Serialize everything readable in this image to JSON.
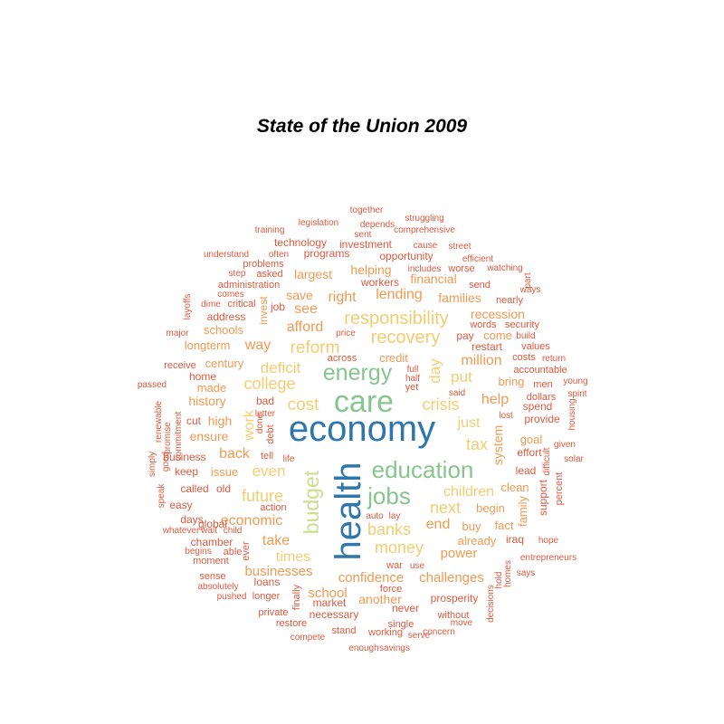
{
  "title": "State of the Union 2009",
  "palette": {
    "blue": "#2f76ad",
    "green": "#86c68e",
    "lightgreen": "#c7e08a",
    "yellow": "#f5cd70",
    "orange": "#f29a51",
    "red": "#e0593f"
  },
  "words": [
    {
      "text": "economy",
      "color": "blue",
      "size": 40
    },
    {
      "text": "health",
      "color": "blue",
      "size": 40
    },
    {
      "text": "care",
      "color": "green",
      "size": 34
    },
    {
      "text": "education",
      "color": "green",
      "size": 26
    },
    {
      "text": "energy",
      "color": "green",
      "size": 25
    },
    {
      "text": "jobs",
      "color": "green",
      "size": 26
    },
    {
      "text": "budget",
      "color": "lightgreen",
      "size": 23
    },
    {
      "text": "responsibility",
      "color": "yellow",
      "size": 20
    },
    {
      "text": "recovery",
      "color": "yellow",
      "size": 20
    },
    {
      "text": "reform",
      "color": "yellow",
      "size": 19
    },
    {
      "text": "deficit",
      "color": "yellow",
      "size": 17
    },
    {
      "text": "college",
      "color": "yellow",
      "size": 18
    },
    {
      "text": "cost",
      "color": "yellow",
      "size": 19
    },
    {
      "text": "crisis",
      "color": "yellow",
      "size": 18
    },
    {
      "text": "future",
      "color": "yellow",
      "size": 18
    },
    {
      "text": "even",
      "color": "yellow",
      "size": 17
    },
    {
      "text": "money",
      "color": "yellow",
      "size": 18
    },
    {
      "text": "banks",
      "color": "yellow",
      "size": 18
    },
    {
      "text": "next",
      "color": "yellow",
      "size": 18
    },
    {
      "text": "children",
      "color": "yellow",
      "size": 16
    },
    {
      "text": "put",
      "color": "yellow",
      "size": 17
    },
    {
      "text": "just",
      "color": "yellow",
      "size": 16
    },
    {
      "text": "tax",
      "color": "yellow",
      "size": 18
    },
    {
      "text": "day",
      "color": "yellow",
      "size": 17
    },
    {
      "text": "work",
      "color": "yellow",
      "size": 16
    },
    {
      "text": "times",
      "color": "yellow",
      "size": 16
    },
    {
      "text": "take",
      "color": "orange",
      "size": 16
    },
    {
      "text": "afford",
      "color": "orange",
      "size": 16
    },
    {
      "text": "see",
      "color": "orange",
      "size": 16
    },
    {
      "text": "right",
      "color": "orange",
      "size": 16
    },
    {
      "text": "lending",
      "color": "orange",
      "size": 16
    },
    {
      "text": "way",
      "color": "orange",
      "size": 16
    },
    {
      "text": "help",
      "color": "orange",
      "size": 16
    },
    {
      "text": "million",
      "color": "orange",
      "size": 16
    },
    {
      "text": "back",
      "color": "orange",
      "size": 16
    },
    {
      "text": "economic",
      "color": "orange",
      "size": 16
    },
    {
      "text": "end",
      "color": "orange",
      "size": 16
    },
    {
      "text": "power",
      "color": "orange",
      "size": 15
    },
    {
      "text": "businesses",
      "color": "orange",
      "size": 15
    },
    {
      "text": "confidence",
      "color": "orange",
      "size": 15
    },
    {
      "text": "challenges",
      "color": "orange",
      "size": 15
    },
    {
      "text": "school",
      "color": "orange",
      "size": 15
    },
    {
      "text": "another",
      "color": "orange",
      "size": 14
    },
    {
      "text": "system",
      "color": "orange",
      "size": 14
    },
    {
      "text": "family",
      "color": "orange",
      "size": 13
    },
    {
      "text": "financial",
      "color": "orange",
      "size": 14
    },
    {
      "text": "families",
      "color": "orange",
      "size": 14
    },
    {
      "text": "recession",
      "color": "orange",
      "size": 14
    },
    {
      "text": "high",
      "color": "orange",
      "size": 14
    },
    {
      "text": "history",
      "color": "orange",
      "size": 14
    },
    {
      "text": "ensure",
      "color": "orange",
      "size": 14
    },
    {
      "text": "helping",
      "color": "orange",
      "size": 14
    },
    {
      "text": "largest",
      "color": "orange",
      "size": 14
    },
    {
      "text": "save",
      "color": "orange",
      "size": 14
    },
    {
      "text": "schools",
      "color": "orange",
      "size": 13
    },
    {
      "text": "longterm",
      "color": "orange",
      "size": 13
    },
    {
      "text": "century",
      "color": "orange",
      "size": 13
    },
    {
      "text": "made",
      "color": "orange",
      "size": 13
    },
    {
      "text": "issue",
      "color": "orange",
      "size": 13
    },
    {
      "text": "goal",
      "color": "orange",
      "size": 13
    },
    {
      "text": "bring",
      "color": "orange",
      "size": 13
    },
    {
      "text": "come",
      "color": "orange",
      "size": 13
    },
    {
      "text": "begin",
      "color": "orange",
      "size": 13
    },
    {
      "text": "buy",
      "color": "orange",
      "size": 13
    },
    {
      "text": "already",
      "color": "orange",
      "size": 13
    },
    {
      "text": "clean",
      "color": "orange",
      "size": 13
    },
    {
      "text": "fact",
      "color": "orange",
      "size": 13
    },
    {
      "text": "credit",
      "color": "orange",
      "size": 13
    },
    {
      "text": "invest",
      "color": "orange",
      "size": 12
    },
    {
      "text": "opportunity",
      "color": "red",
      "size": 12
    },
    {
      "text": "programs",
      "color": "red",
      "size": 12
    },
    {
      "text": "technology",
      "color": "red",
      "size": 12
    },
    {
      "text": "investment",
      "color": "red",
      "size": 12
    },
    {
      "text": "problems",
      "color": "red",
      "size": 11
    },
    {
      "text": "asked",
      "color": "red",
      "size": 11
    },
    {
      "text": "administration",
      "color": "red",
      "size": 11
    },
    {
      "text": "workers",
      "color": "red",
      "size": 12
    },
    {
      "text": "worse",
      "color": "red",
      "size": 11
    },
    {
      "text": "send",
      "color": "red",
      "size": 11
    },
    {
      "text": "nearly",
      "color": "red",
      "size": 11
    },
    {
      "text": "words",
      "color": "red",
      "size": 11
    },
    {
      "text": "security",
      "color": "red",
      "size": 11
    },
    {
      "text": "pay",
      "color": "red",
      "size": 12
    },
    {
      "text": "restart",
      "color": "red",
      "size": 12
    },
    {
      "text": "values",
      "color": "red",
      "size": 11
    },
    {
      "text": "costs",
      "color": "red",
      "size": 11
    },
    {
      "text": "accountable",
      "color": "red",
      "size": 11
    },
    {
      "text": "address",
      "color": "red",
      "size": 12
    },
    {
      "text": "job",
      "color": "red",
      "size": 12
    },
    {
      "text": "critical",
      "color": "red",
      "size": 11
    },
    {
      "text": "dime",
      "color": "red",
      "size": 10
    },
    {
      "text": "comes",
      "color": "red",
      "size": 10
    },
    {
      "text": "step",
      "color": "red",
      "size": 10
    },
    {
      "text": "receive",
      "color": "red",
      "size": 11
    },
    {
      "text": "home",
      "color": "red",
      "size": 12
    },
    {
      "text": "passed",
      "color": "red",
      "size": 10
    },
    {
      "text": "cut",
      "color": "red",
      "size": 12
    },
    {
      "text": "business",
      "color": "red",
      "size": 12
    },
    {
      "text": "keep",
      "color": "red",
      "size": 12
    },
    {
      "text": "called",
      "color": "red",
      "size": 12
    },
    {
      "text": "old",
      "color": "red",
      "size": 12
    },
    {
      "text": "easy",
      "color": "red",
      "size": 12
    },
    {
      "text": "global",
      "color": "red",
      "size": 12
    },
    {
      "text": "days",
      "color": "red",
      "size": 12
    },
    {
      "text": "chamber",
      "color": "red",
      "size": 12
    },
    {
      "text": "able",
      "color": "red",
      "size": 11
    },
    {
      "text": "moment",
      "color": "red",
      "size": 11
    },
    {
      "text": "sense",
      "color": "red",
      "size": 11
    },
    {
      "text": "loans",
      "color": "red",
      "size": 12
    },
    {
      "text": "longer",
      "color": "red",
      "size": 11
    },
    {
      "text": "market",
      "color": "red",
      "size": 12
    },
    {
      "text": "necessary",
      "color": "red",
      "size": 12
    },
    {
      "text": "private",
      "color": "red",
      "size": 11
    },
    {
      "text": "restore",
      "color": "red",
      "size": 11
    },
    {
      "text": "stand",
      "color": "red",
      "size": 11
    },
    {
      "text": "working",
      "color": "red",
      "size": 11
    },
    {
      "text": "single",
      "color": "red",
      "size": 11
    },
    {
      "text": "never",
      "color": "red",
      "size": 12
    },
    {
      "text": "prosperity",
      "color": "red",
      "size": 12
    },
    {
      "text": "without",
      "color": "red",
      "size": 11
    },
    {
      "text": "move",
      "color": "red",
      "size": 10
    },
    {
      "text": "concern",
      "color": "red",
      "size": 10
    },
    {
      "text": "serve",
      "color": "red",
      "size": 10
    },
    {
      "text": "savings",
      "color": "red",
      "size": 10
    },
    {
      "text": "enough",
      "color": "red",
      "size": 10
    },
    {
      "text": "compete",
      "color": "red",
      "size": 10
    },
    {
      "text": "force",
      "color": "red",
      "size": 11
    },
    {
      "text": "war",
      "color": "red",
      "size": 11
    },
    {
      "text": "use",
      "color": "red",
      "size": 10
    },
    {
      "text": "iraq",
      "color": "red",
      "size": 12
    },
    {
      "text": "support",
      "color": "red",
      "size": 12
    },
    {
      "text": "lead",
      "color": "red",
      "size": 12
    },
    {
      "text": "effort",
      "color": "red",
      "size": 12
    },
    {
      "text": "provide",
      "color": "red",
      "size": 12
    },
    {
      "text": "spend",
      "color": "red",
      "size": 12
    },
    {
      "text": "dollars",
      "color": "red",
      "size": 11
    },
    {
      "text": "men",
      "color": "red",
      "size": 11
    },
    {
      "text": "lost",
      "color": "red",
      "size": 10
    },
    {
      "text": "said",
      "color": "red",
      "size": 10
    },
    {
      "text": "yet",
      "color": "red",
      "size": 11
    },
    {
      "text": "half",
      "color": "red",
      "size": 10
    },
    {
      "text": "full",
      "color": "red",
      "size": 10
    },
    {
      "text": "across",
      "color": "red",
      "size": 11
    },
    {
      "text": "price",
      "color": "red",
      "size": 10
    },
    {
      "text": "bad",
      "color": "red",
      "size": 12
    },
    {
      "text": "letter",
      "color": "red",
      "size": 10
    },
    {
      "text": "done",
      "color": "red",
      "size": 10
    },
    {
      "text": "debt",
      "color": "red",
      "size": 11
    },
    {
      "text": "tell",
      "color": "red",
      "size": 11
    },
    {
      "text": "life",
      "color": "red",
      "size": 10
    },
    {
      "text": "action",
      "color": "red",
      "size": 11
    },
    {
      "text": "auto",
      "color": "red",
      "size": 10
    },
    {
      "text": "lay",
      "color": "red",
      "size": 10
    },
    {
      "text": "together",
      "color": "red",
      "size": 10
    },
    {
      "text": "legislation",
      "color": "red",
      "size": 10
    },
    {
      "text": "depends",
      "color": "red",
      "size": 10
    },
    {
      "text": "struggling",
      "color": "red",
      "size": 10
    },
    {
      "text": "training",
      "color": "red",
      "size": 10
    },
    {
      "text": "sent",
      "color": "red",
      "size": 10
    },
    {
      "text": "comprehensive",
      "color": "red",
      "size": 10
    },
    {
      "text": "cause",
      "color": "red",
      "size": 10
    },
    {
      "text": "street",
      "color": "red",
      "size": 10
    },
    {
      "text": "understand",
      "color": "red",
      "size": 10
    },
    {
      "text": "often",
      "color": "red",
      "size": 10
    },
    {
      "text": "efficient",
      "color": "red",
      "size": 10
    },
    {
      "text": "includes",
      "color": "red",
      "size": 10
    },
    {
      "text": "watching",
      "color": "red",
      "size": 10
    },
    {
      "text": "part",
      "color": "red",
      "size": 10
    },
    {
      "text": "ways",
      "color": "red",
      "size": 10
    },
    {
      "text": "major",
      "color": "red",
      "size": 10
    },
    {
      "text": "layoffs",
      "color": "red",
      "size": 10
    },
    {
      "text": "build",
      "color": "red",
      "size": 10
    },
    {
      "text": "return",
      "color": "red",
      "size": 10
    },
    {
      "text": "young",
      "color": "red",
      "size": 10
    },
    {
      "text": "spirit",
      "color": "red",
      "size": 10
    },
    {
      "text": "housing",
      "color": "red",
      "size": 10
    },
    {
      "text": "given",
      "color": "red",
      "size": 10
    },
    {
      "text": "difficult",
      "color": "red",
      "size": 10
    },
    {
      "text": "solar",
      "color": "red",
      "size": 10
    },
    {
      "text": "percent",
      "color": "red",
      "size": 11
    },
    {
      "text": "hope",
      "color": "red",
      "size": 10
    },
    {
      "text": "entrepreneurs",
      "color": "red",
      "size": 10
    },
    {
      "text": "says",
      "color": "red",
      "size": 10
    },
    {
      "text": "homes",
      "color": "red",
      "size": 10
    },
    {
      "text": "hold",
      "color": "red",
      "size": 10
    },
    {
      "text": "decisions",
      "color": "red",
      "size": 10
    },
    {
      "text": "renewable",
      "color": "red",
      "size": 10
    },
    {
      "text": "promise",
      "color": "red",
      "size": 10
    },
    {
      "text": "commitment",
      "color": "red",
      "size": 10
    },
    {
      "text": "good",
      "color": "red",
      "size": 10
    },
    {
      "text": "simply",
      "color": "red",
      "size": 10
    },
    {
      "text": "speak",
      "color": "red",
      "size": 10
    },
    {
      "text": "whatever",
      "color": "red",
      "size": 10
    },
    {
      "text": "wait",
      "color": "red",
      "size": 10
    },
    {
      "text": "child",
      "color": "red",
      "size": 10
    },
    {
      "text": "begins",
      "color": "red",
      "size": 10
    },
    {
      "text": "ever",
      "color": "red",
      "size": 11
    },
    {
      "text": "absolutely",
      "color": "red",
      "size": 10
    },
    {
      "text": "pushed",
      "color": "red",
      "size": 10
    },
    {
      "text": "finally",
      "color": "red",
      "size": 11
    }
  ]
}
